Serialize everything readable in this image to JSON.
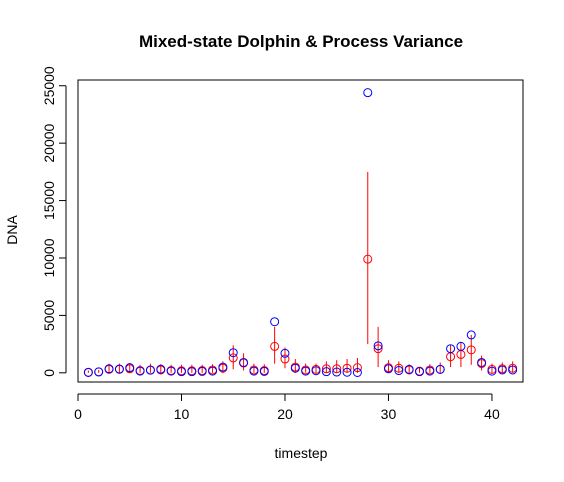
{
  "chart_data": {
    "type": "scatter",
    "title": "Mixed-state Dolphin & Process Variance",
    "xlabel": "timestep",
    "ylabel": "DNA",
    "xlim": [
      0,
      43
    ],
    "ylim": [
      -800,
      25500
    ],
    "x_ticks": [
      0,
      10,
      20,
      30,
      40
    ],
    "y_ticks": [
      0,
      5000,
      10000,
      15000,
      20000,
      25000
    ],
    "colors": {
      "observed": "#0000ff",
      "estimated": "#ff0000"
    },
    "series": [
      {
        "marker": "open-circle",
        "color": "#0000ff",
        "x": [
          1,
          2,
          3,
          4,
          5,
          6,
          7,
          8,
          9,
          10,
          11,
          12,
          13,
          14,
          15,
          16,
          17,
          18,
          19,
          20,
          21,
          22,
          23,
          24,
          25,
          26,
          27,
          28,
          29,
          30,
          31,
          32,
          33,
          34,
          35,
          36,
          37,
          38,
          39,
          40,
          41,
          42
        ],
        "values": [
          30,
          80,
          350,
          330,
          450,
          150,
          230,
          320,
          150,
          100,
          100,
          120,
          150,
          500,
          1750,
          900,
          150,
          120,
          4450,
          1700,
          400,
          150,
          180,
          100,
          70,
          50,
          30,
          24400,
          2350,
          350,
          200,
          300,
          100,
          150,
          300,
          2100,
          2300,
          3300,
          900,
          150,
          250,
          250
        ]
      },
      {
        "marker": "open-circle-with-interval",
        "color": "#ff0000",
        "x": [
          1,
          2,
          3,
          4,
          5,
          6,
          7,
          8,
          9,
          10,
          11,
          12,
          13,
          14,
          15,
          16,
          17,
          18,
          19,
          20,
          21,
          22,
          23,
          24,
          25,
          26,
          27,
          28,
          29,
          30,
          31,
          32,
          33,
          34,
          35,
          36,
          37,
          38,
          39,
          40,
          41,
          42
        ],
        "values": [
          50,
          80,
          300,
          300,
          350,
          200,
          250,
          250,
          200,
          180,
          180,
          200,
          250,
          400,
          1300,
          850,
          250,
          200,
          2300,
          1200,
          500,
          250,
          300,
          350,
          350,
          400,
          450,
          9900,
          2100,
          450,
          400,
          250,
          150,
          250,
          300,
          1400,
          1600,
          2000,
          800,
          300,
          350,
          400
        ],
        "lower": [
          0,
          0,
          0,
          0,
          0,
          0,
          0,
          0,
          0,
          0,
          0,
          0,
          0,
          0,
          300,
          200,
          0,
          0,
          800,
          400,
          0,
          0,
          0,
          0,
          0,
          0,
          0,
          2500,
          500,
          0,
          0,
          0,
          0,
          0,
          0,
          500,
          500,
          700,
          200,
          0,
          0,
          0
        ],
        "upper": [
          200,
          250,
          800,
          800,
          850,
          700,
          800,
          750,
          700,
          700,
          700,
          700,
          750,
          1000,
          2400,
          1700,
          800,
          750,
          4000,
          2200,
          1200,
          800,
          800,
          1000,
          1100,
          1200,
          1300,
          17500,
          4000,
          1100,
          1000,
          750,
          500,
          750,
          900,
          2400,
          2700,
          3300,
          1500,
          800,
          900,
          1000
        ]
      }
    ]
  }
}
